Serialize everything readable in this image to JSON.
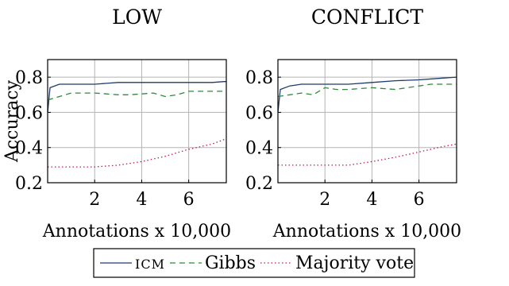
{
  "chart_data": [
    {
      "type": "line",
      "title": "LOW",
      "xlabel": "Annotations x 10,000",
      "ylabel": "Accuracy",
      "xlim": [
        0,
        7.6
      ],
      "ylim": [
        0.2,
        0.9
      ],
      "xticks": [
        2,
        4,
        6
      ],
      "yticks": [
        0.2,
        0.4,
        0.6,
        0.8
      ],
      "grid": true,
      "series": [
        {
          "name": "ICM",
          "color": "#1f3b6b",
          "dash": "solid",
          "x": [
            0,
            0.1,
            0.5,
            1,
            2,
            2.5,
            3,
            3.5,
            4,
            4.5,
            5,
            5.5,
            6,
            6.5,
            7,
            7.5,
            7.6
          ],
          "y": [
            0.6,
            0.74,
            0.76,
            0.76,
            0.76,
            0.765,
            0.77,
            0.77,
            0.77,
            0.77,
            0.77,
            0.77,
            0.77,
            0.77,
            0.77,
            0.775,
            0.775
          ]
        },
        {
          "name": "Gibbs",
          "color": "#2e8b3a",
          "dash": "dashed",
          "x": [
            0,
            0.5,
            1,
            1.5,
            2,
            2.5,
            3,
            3.5,
            4,
            4.5,
            5,
            5.5,
            6,
            6.5,
            7,
            7.5,
            7.6
          ],
          "y": [
            0.67,
            0.69,
            0.71,
            0.71,
            0.71,
            0.705,
            0.7,
            0.7,
            0.705,
            0.71,
            0.69,
            0.7,
            0.72,
            0.72,
            0.72,
            0.72,
            0.72
          ]
        },
        {
          "name": "Majority vote",
          "color": "#c2185b",
          "dash": "dotted",
          "x": [
            0,
            1,
            2,
            3,
            4,
            5,
            6,
            7,
            7.6
          ],
          "y": [
            0.29,
            0.29,
            0.29,
            0.3,
            0.32,
            0.35,
            0.39,
            0.42,
            0.45
          ]
        }
      ]
    },
    {
      "type": "line",
      "title": "CONFLICT",
      "xlabel": "Annotations x 10,000",
      "ylabel": "",
      "xlim": [
        0,
        7.6
      ],
      "ylim": [
        0.2,
        0.9
      ],
      "xticks": [
        2,
        4,
        6
      ],
      "yticks": [
        0.2,
        0.4,
        0.6,
        0.8
      ],
      "grid": true,
      "series": [
        {
          "name": "ICM",
          "color": "#1f3b6b",
          "dash": "solid",
          "x": [
            0,
            0.1,
            0.5,
            1,
            2,
            3,
            4,
            5,
            6,
            7,
            7.6
          ],
          "y": [
            0.6,
            0.73,
            0.75,
            0.76,
            0.76,
            0.76,
            0.77,
            0.78,
            0.785,
            0.795,
            0.8
          ]
        },
        {
          "name": "Gibbs",
          "color": "#2e8b3a",
          "dash": "dashed",
          "x": [
            0,
            0.5,
            1,
            1.5,
            2,
            2.5,
            3,
            3.5,
            4,
            4.5,
            5,
            5.5,
            6,
            6.5,
            7,
            7.6
          ],
          "y": [
            0.69,
            0.7,
            0.71,
            0.7,
            0.74,
            0.73,
            0.73,
            0.735,
            0.74,
            0.735,
            0.73,
            0.74,
            0.75,
            0.76,
            0.76,
            0.76
          ]
        },
        {
          "name": "Majority vote",
          "color": "#c2185b",
          "dash": "dotted",
          "x": [
            0,
            1,
            2,
            3,
            4,
            5,
            6,
            7,
            7.6
          ],
          "y": [
            0.3,
            0.3,
            0.3,
            0.3,
            0.32,
            0.345,
            0.375,
            0.405,
            0.42
          ]
        }
      ]
    }
  ],
  "legend": {
    "placement": "bottom-center",
    "entries": [
      {
        "label": "ICM",
        "small_caps": true
      },
      {
        "label": "Gibbs",
        "small_caps": false
      },
      {
        "label": "Majority vote",
        "small_caps": false
      }
    ]
  }
}
